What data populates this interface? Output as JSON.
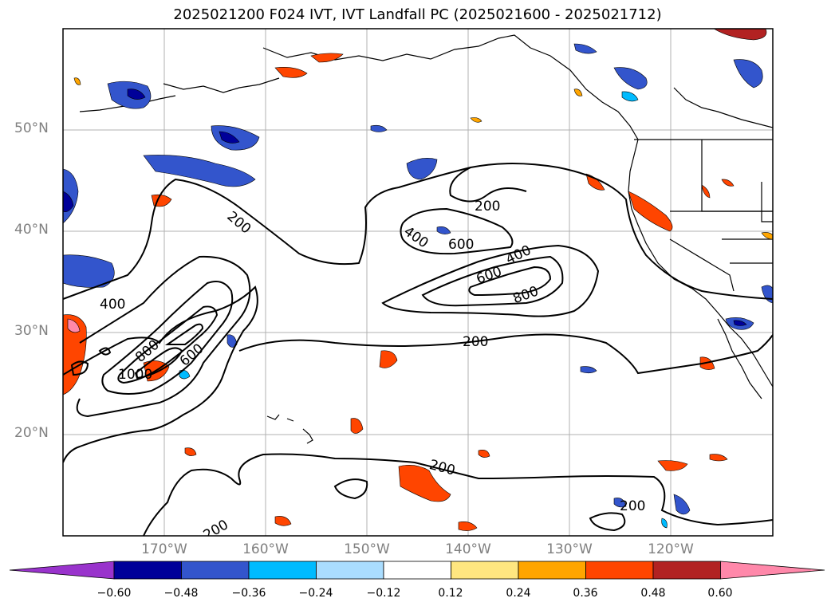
{
  "title": "2025021200 F024 IVT, IVT Landfall PC (2025021600 - 2025021712)",
  "latitude_labels": [
    "50°N",
    "40°N",
    "30°N",
    "20°N"
  ],
  "longitude_labels": [
    "170°W",
    "160°W",
    "150°W",
    "140°W",
    "130°W",
    "120°W"
  ],
  "contour_labels": [
    "200",
    "200",
    "200",
    "200",
    "200",
    "200",
    "400",
    "400",
    "400",
    "600",
    "600",
    "600",
    "800",
    "800",
    "1000"
  ],
  "colorbar": {
    "tick_labels": [
      "−0.60",
      "−0.48",
      "−0.36",
      "−0.24",
      "−0.12",
      "0.12",
      "0.24",
      "0.36",
      "0.48",
      "0.60"
    ],
    "colors": [
      "#9933cc",
      "#000099",
      "#3355cc",
      "#00bbff",
      "#aaddff",
      "#ffffff",
      "#ffe680",
      "#ffa500",
      "#ff4500",
      "#b22222",
      "#ff88aa"
    ]
  },
  "map": {
    "grid": true,
    "contour_color": "#000000",
    "land_outline_color": "#000000",
    "gridline_color": "#b0b0b0"
  }
}
